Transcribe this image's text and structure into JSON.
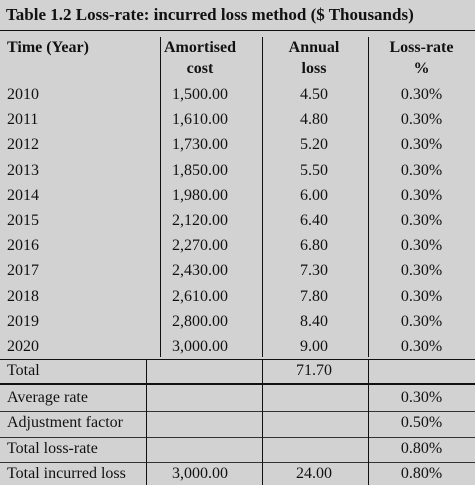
{
  "table": {
    "title": "Table 1.2  Loss-rate: incurred loss method ($ Thousands)",
    "headers": {
      "time": "Time (Year)",
      "cost_l1": "Amortised",
      "cost_l2": "cost",
      "loss_l1": "Annual",
      "loss_l2": "loss",
      "rate_l1": "Loss-rate",
      "rate_l2": "%"
    },
    "rows": [
      {
        "year": "2010",
        "cost": "1,500.00",
        "loss": "4.50",
        "rate": "0.30%"
      },
      {
        "year": "2011",
        "cost": "1,610.00",
        "loss": "4.80",
        "rate": "0.30%"
      },
      {
        "year": "2012",
        "cost": "1,730.00",
        "loss": "5.20",
        "rate": "0.30%"
      },
      {
        "year": "2013",
        "cost": "1,850.00",
        "loss": "5.50",
        "rate": "0.30%"
      },
      {
        "year": "2014",
        "cost": "1,980.00",
        "loss": "6.00",
        "rate": "0.30%"
      },
      {
        "year": "2015",
        "cost": "2,120.00",
        "loss": "6.40",
        "rate": "0.30%"
      },
      {
        "year": "2016",
        "cost": "2,270.00",
        "loss": "6.80",
        "rate": "0.30%"
      },
      {
        "year": "2017",
        "cost": "2,430.00",
        "loss": "7.30",
        "rate": "0.30%"
      },
      {
        "year": "2018",
        "cost": "2,610.00",
        "loss": "7.80",
        "rate": "0.30%"
      },
      {
        "year": "2019",
        "cost": "2,800.00",
        "loss": "8.40",
        "rate": "0.30%"
      },
      {
        "year": "2020",
        "cost": "3,000.00",
        "loss": "9.00",
        "rate": "0.30%"
      }
    ],
    "total": {
      "label": "Total",
      "cost": "",
      "loss": "71.70",
      "rate": ""
    },
    "summary": [
      {
        "label": "Average rate",
        "cost": "",
        "loss": "",
        "rate": "0.30%"
      },
      {
        "label": "Adjustment factor",
        "cost": "",
        "loss": "",
        "rate": "0.50%"
      },
      {
        "label": "Total loss-rate",
        "cost": "",
        "loss": "",
        "rate": "0.80%"
      },
      {
        "label": "Total incurred loss",
        "cost": "3,000.00",
        "loss": "24.00",
        "rate": "0.80%"
      }
    ]
  }
}
